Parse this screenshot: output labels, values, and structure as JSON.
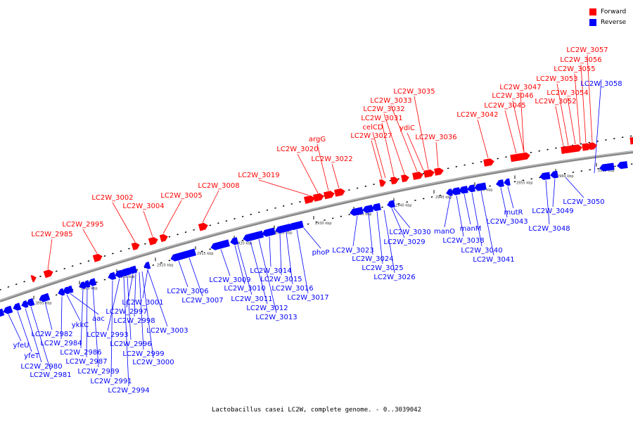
{
  "title": "Lactobacillus casei LC2W, complete genome. - 0..3039042",
  "legend": {
    "forward": {
      "label": "Forward",
      "color": "#ff0000"
    },
    "reverse": {
      "label": "Reverse",
      "color": "#0000ff"
    }
  },
  "colors": {
    "forward": "#ff0000",
    "reverse": "#0000ff",
    "backbone": "#888888"
  },
  "scale_ticks": [
    "2895 kbp",
    "2900 kbp",
    "2905 kbp",
    "2910 kbp",
    "2915 kbp",
    "2920 kbp",
    "2925 kbp",
    "2930 kbp",
    "2935 kbp",
    "2940 kbp",
    "2945 kbp",
    "2950 kbp",
    "2955 kbp",
    "2960 kbp",
    "2965 kbp"
  ],
  "forward_labels": [
    "LC2W_2985",
    "LC2W_2995",
    "LC2W_3002",
    "LC2W_3004",
    "LC2W_3005",
    "LC2W_3008",
    "LC2W_3019",
    "LC2W_3020",
    "argG",
    "LC2W_3022",
    "LC2W_3027",
    "celCD",
    "LC2W_3031",
    "LC2W_3032",
    "LC2W_3033",
    "LC2W_3035",
    "ydiC",
    "LC2W_3036",
    "LC2W_3042",
    "LC2W_3045",
    "LC2W_3046",
    "LC2W_3047",
    "LC2W_3052",
    "LC2W_3053",
    "LC2W_3054",
    "LC2W_3055",
    "LC2W_3056",
    "LC2W_3057"
  ],
  "reverse_labels": [
    "LC2W_3058",
    "yfeU",
    "yfeT",
    "LC2W_2980",
    "LC2W_2981",
    "LC2W_2982",
    "LC2W_2984",
    "ykkC",
    "aac",
    "LC2W_2986",
    "LC2W_2987",
    "LC2W_2989",
    "LC2W_2991",
    "LC2W_2993",
    "LC2W_2994",
    "LC2W_2996",
    "LC2W_2997",
    "LC2W_2998",
    "LC2W_2999",
    "LC2W_3000",
    "LC2W_3001",
    "LC2W_3003",
    "LC2W_3006",
    "LC2W_3007",
    "LC2W_3009",
    "LC2W_3010",
    "LC2W_3011",
    "LC2W_3012",
    "LC2W_3013",
    "LC2W_3014",
    "LC2W_3015",
    "LC2W_3016",
    "LC2W_3017",
    "phoP",
    "LC2W_3023",
    "LC2W_3024",
    "LC2W_3025",
    "LC2W_3026",
    "LC2W_3029",
    "LC2W_3030",
    "manO",
    "LC2W_3038",
    "manM",
    "LC2W_3040",
    "LC2W_3041",
    "LC2W_3043",
    "mutR",
    "LC2W_3048",
    "LC2W_3049",
    "LC2W_3050"
  ]
}
